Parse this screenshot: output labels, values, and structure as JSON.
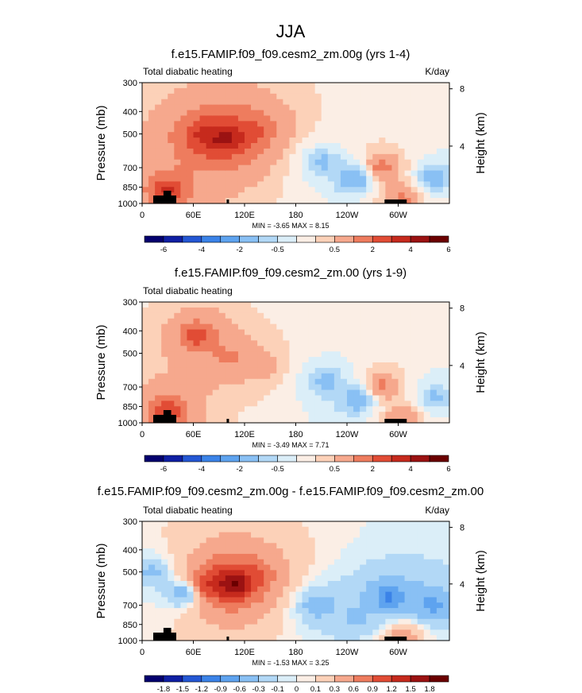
{
  "figure_title": "JJA",
  "chart_data": [
    {
      "type": "heatmap",
      "title": "f.e15.FAMIP.f09_f09.cesm2_zm.00g (yrs 1-4)",
      "left_label": "Total diabatic heating",
      "right_label": "K/day",
      "ylabel": "Pressure (mb)",
      "ylabel_right": "Height (km)",
      "x_ticks": [
        "0",
        "60E",
        "120E",
        "180",
        "120W",
        "60W"
      ],
      "x_tick_lon": [
        0,
        60,
        120,
        180,
        240,
        300
      ],
      "xlim": [
        0,
        360
      ],
      "y_ticks": [
        "300",
        "400",
        "500",
        "700",
        "850",
        "1000"
      ],
      "y_tick_p": [
        300,
        400,
        500,
        700,
        850,
        1000
      ],
      "ylim": [
        1000,
        300
      ],
      "height_ticks": [
        "8",
        "4"
      ],
      "height_tick_km": [
        8,
        4
      ],
      "stats": "MIN = -3.65  MAX =  8.15",
      "colorbar": {
        "levels": [
          -7,
          -6,
          -5,
          -4,
          -3,
          -2,
          -1,
          -0.5,
          0,
          0.5,
          1,
          2,
          3,
          4,
          5,
          6
        ],
        "labels": [
          "-6",
          "-4",
          "-2",
          "-0.5",
          "0.5",
          "2",
          "4",
          "6"
        ],
        "label_after_box": [
          0,
          2,
          4,
          6,
          9,
          11,
          13,
          15
        ]
      },
      "features": [
        {
          "lon": 100,
          "p": 520,
          "value": 7.5
        },
        {
          "lon": 90,
          "p": 520,
          "value": 6.0
        },
        {
          "lon": 70,
          "p": 500,
          "value": 5.0
        },
        {
          "lon": 135,
          "p": 480,
          "value": 4.0
        },
        {
          "lon": 30,
          "p": 880,
          "value": 5.5
        },
        {
          "lon": 210,
          "p": 660,
          "value": -2.0
        },
        {
          "lon": 250,
          "p": 780,
          "value": -3.5
        },
        {
          "lon": 280,
          "p": 700,
          "value": 4.0
        },
        {
          "lon": 305,
          "p": 960,
          "value": 3.5
        },
        {
          "lon": 340,
          "p": 780,
          "value": -2.5
        }
      ]
    },
    {
      "type": "heatmap",
      "title": "f.e15.FAMIP.f09_f09.cesm2_zm.00 (yrs 1-9)",
      "left_label": "Total diabatic heating",
      "right_label": "",
      "ylabel": "Pressure (mb)",
      "ylabel_right": "Height (km)",
      "x_ticks": [
        "0",
        "60E",
        "120E",
        "180",
        "120W",
        "60W"
      ],
      "x_tick_lon": [
        0,
        60,
        120,
        180,
        240,
        300
      ],
      "xlim": [
        0,
        360
      ],
      "y_ticks": [
        "300",
        "400",
        "500",
        "700",
        "850",
        "1000"
      ],
      "y_tick_p": [
        300,
        400,
        500,
        700,
        850,
        1000
      ],
      "ylim": [
        1000,
        300
      ],
      "height_ticks": [
        "8",
        "4"
      ],
      "height_tick_km": [
        8,
        4
      ],
      "stats": "MIN = -3.49  MAX =  7.71",
      "colorbar": {
        "levels": [
          -7,
          -6,
          -5,
          -4,
          -3,
          -2,
          -1,
          -0.5,
          0,
          0.5,
          1,
          2,
          3,
          4,
          5,
          6
        ],
        "labels": [
          "-6",
          "-4",
          "-2",
          "-0.5",
          "0.5",
          "2",
          "4",
          "6"
        ],
        "label_after_box": [
          0,
          2,
          4,
          6,
          9,
          11,
          13,
          15
        ]
      },
      "features": [
        {
          "lon": 65,
          "p": 420,
          "value": 5.0
        },
        {
          "lon": 100,
          "p": 520,
          "value": 3.0
        },
        {
          "lon": 140,
          "p": 560,
          "value": 2.0
        },
        {
          "lon": 30,
          "p": 880,
          "value": 5.5
        },
        {
          "lon": 215,
          "p": 660,
          "value": -2.0
        },
        {
          "lon": 255,
          "p": 790,
          "value": -3.4
        },
        {
          "lon": 280,
          "p": 700,
          "value": 4.0
        },
        {
          "lon": 305,
          "p": 960,
          "value": 3.0
        },
        {
          "lon": 340,
          "p": 780,
          "value": -2.0
        }
      ]
    },
    {
      "type": "heatmap",
      "title": "f.e15.FAMIP.f09_f09.cesm2_zm.00g - f.e15.FAMIP.f09_f09.cesm2_zm.00",
      "left_label": "Total diabatic heating",
      "right_label": "K/day",
      "ylabel": "Pressure (mb)",
      "ylabel_right": "Height (km)",
      "x_ticks": [
        "0",
        "60E",
        "120E",
        "180",
        "120W",
        "60W"
      ],
      "x_tick_lon": [
        0,
        60,
        120,
        180,
        240,
        300
      ],
      "xlim": [
        0,
        360
      ],
      "y_ticks": [
        "300",
        "400",
        "500",
        "700",
        "850",
        "1000"
      ],
      "y_tick_p": [
        300,
        400,
        500,
        700,
        850,
        1000
      ],
      "ylim": [
        1000,
        300
      ],
      "height_ticks": [
        "8",
        "4"
      ],
      "height_tick_km": [
        8,
        4
      ],
      "stats": "MIN = -1.53  MAX =  3.25",
      "colorbar": {
        "levels": [
          -2.1,
          -1.8,
          -1.5,
          -1.2,
          -0.9,
          -0.6,
          -0.3,
          -0.1,
          0,
          0.1,
          0.3,
          0.6,
          0.9,
          1.2,
          1.5,
          1.8
        ],
        "labels": [
          "-1.8",
          "-1.5",
          "-1.2",
          "-0.9",
          "-0.6",
          "-0.3",
          "-0.1",
          "0",
          "0.1",
          "0.3",
          "0.6",
          "0.9",
          "1.2",
          "1.5",
          "1.8"
        ],
        "label_after_box": [
          0,
          1,
          2,
          3,
          4,
          5,
          6,
          7,
          8,
          9,
          10,
          11,
          12,
          13,
          14
        ]
      },
      "features": [
        {
          "lon": 108,
          "p": 560,
          "value": 3.0
        },
        {
          "lon": 90,
          "p": 560,
          "value": 1.8
        },
        {
          "lon": 75,
          "p": 580,
          "value": 1.5
        },
        {
          "lon": 130,
          "p": 520,
          "value": 1.2
        },
        {
          "lon": 50,
          "p": 620,
          "value": -1.2
        },
        {
          "lon": 12,
          "p": 500,
          "value": -0.6
        },
        {
          "lon": 205,
          "p": 700,
          "value": -0.8
        },
        {
          "lon": 250,
          "p": 800,
          "value": -0.5
        },
        {
          "lon": 290,
          "p": 650,
          "value": -1.4
        },
        {
          "lon": 340,
          "p": 700,
          "value": -1.0
        },
        {
          "lon": 305,
          "p": 950,
          "value": 0.9
        }
      ]
    }
  ],
  "colors": {
    "palette": [
      "#04006e",
      "#0f1fa3",
      "#2457d4",
      "#3b83e8",
      "#5ea3ef",
      "#89c0f4",
      "#b2d8f6",
      "#dbeef8",
      "#fbeee5",
      "#fcd1b8",
      "#f6a88d",
      "#ee7c5e",
      "#e14c35",
      "#c62a1d",
      "#9b1212",
      "#6b0000"
    ],
    "topography": "#000000"
  }
}
